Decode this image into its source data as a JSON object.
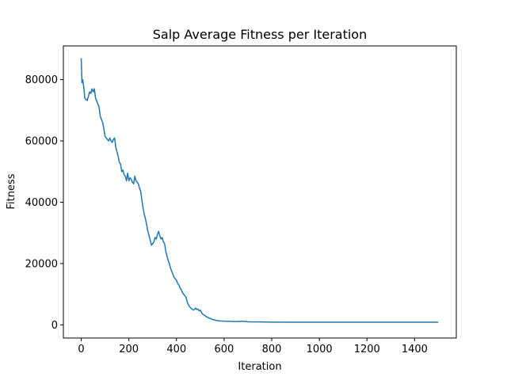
{
  "chart_data": {
    "type": "line",
    "title": "Salp Average Fitness per Iteration",
    "xlabel": "Iteration",
    "ylabel": "Fitness",
    "xlim": [
      -75,
      1575
    ],
    "ylim": [
      -4300,
      91000
    ],
    "xticks": [
      0,
      200,
      400,
      600,
      800,
      1000,
      1200,
      1400
    ],
    "xtick_labels": [
      "0",
      "200",
      "400",
      "600",
      "800",
      "1000",
      "1200",
      "1400"
    ],
    "yticks": [
      0,
      20000,
      40000,
      60000,
      80000
    ],
    "ytick_labels": [
      "0",
      "20000",
      "40000",
      "60000",
      "80000"
    ],
    "grid": false,
    "line_color": "#1f77b4",
    "series": [
      {
        "x": [
          0,
          3,
          6,
          10,
          15,
          20,
          25,
          30,
          35,
          40,
          45,
          50,
          55,
          60,
          65,
          70,
          75,
          80,
          85,
          90,
          95,
          100,
          105,
          110,
          115,
          120,
          125,
          130,
          135,
          140,
          145,
          150,
          155,
          160,
          165,
          170,
          175,
          180,
          185,
          190,
          195,
          200,
          205,
          210,
          215,
          220,
          225,
          230,
          235,
          240,
          245,
          250,
          255,
          260,
          265,
          270,
          275,
          280,
          285,
          290,
          295,
          300,
          305,
          310,
          315,
          320,
          325,
          330,
          335,
          340,
          345,
          350,
          355,
          360,
          365,
          370,
          375,
          380,
          385,
          390,
          395,
          400,
          405,
          410,
          415,
          420,
          425,
          430,
          435,
          440,
          445,
          450,
          455,
          460,
          465,
          470,
          475,
          480,
          485,
          490,
          495,
          500,
          505,
          510,
          515,
          520,
          525,
          530,
          535,
          540,
          545,
          550,
          555,
          560,
          570,
          580,
          590,
          600,
          620,
          640,
          660,
          680,
          700,
          750,
          800,
          900,
          1000,
          1100,
          1200,
          1300,
          1400,
          1499
        ],
        "y": [
          87000,
          79000,
          80000,
          78000,
          74000,
          73500,
          73200,
          74500,
          76000,
          75500,
          77000,
          76000,
          77000,
          74000,
          73000,
          72000,
          71000,
          68000,
          67000,
          66000,
          64000,
          61500,
          61000,
          60500,
          60000,
          61000,
          60000,
          59500,
          60500,
          61000,
          58000,
          56500,
          55000,
          53000,
          52500,
          50000,
          50500,
          49000,
          48500,
          47000,
          49500,
          47000,
          48000,
          47500,
          46500,
          46000,
          48500,
          47000,
          46500,
          46000,
          44500,
          43500,
          40500,
          38000,
          36000,
          34500,
          32500,
          30500,
          29000,
          27500,
          26000,
          26500,
          27000,
          28500,
          28000,
          29500,
          30500,
          29000,
          28000,
          28500,
          27000,
          26500,
          24000,
          22500,
          21000,
          20000,
          18500,
          17500,
          16500,
          15500,
          15000,
          14500,
          13500,
          13000,
          12000,
          11500,
          10500,
          10000,
          9500,
          9000,
          7500,
          6500,
          6000,
          5500,
          5200,
          4800,
          5000,
          5500,
          5000,
          5200,
          4600,
          4800,
          4000,
          3500,
          3200,
          3000,
          2700,
          2500,
          2300,
          2100,
          2000,
          1800,
          1700,
          1600,
          1400,
          1300,
          1250,
          1200,
          1150,
          1100,
          1100,
          1200,
          1000,
          950,
          900,
          880,
          870,
          860,
          860,
          860,
          860,
          860
        ]
      }
    ]
  }
}
